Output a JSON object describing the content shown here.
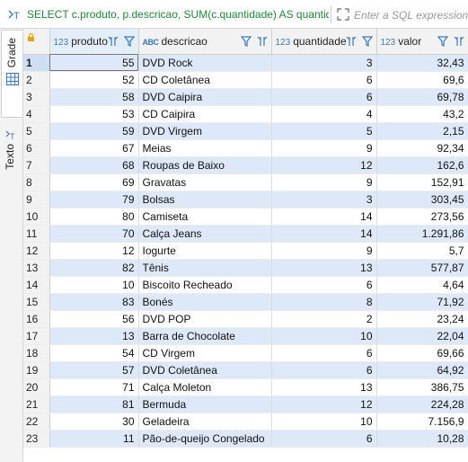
{
  "query": {
    "sql_text": "SELECT c.produto, p.descricao, SUM(c.quantidade) AS quantidade",
    "filter_placeholder": "Enter a SQL expression to filter results (use Ctrl+Space)"
  },
  "side_tabs": {
    "grid_label": "Grade",
    "text_label": "Texto"
  },
  "colors": {
    "sql_green": "#1e8a36",
    "type_blue": "#3a78c4",
    "row_alt": "#dde9f8"
  },
  "columns": [
    {
      "type_badge": "123",
      "name": "produto"
    },
    {
      "type_badge": "ABC",
      "name": "descricao"
    },
    {
      "type_badge": "123",
      "name": "quantidade"
    },
    {
      "type_badge": "123",
      "name": "valor"
    }
  ],
  "rows": [
    {
      "n": "1",
      "produto": "55",
      "descricao": "DVD Rock",
      "quantidade": "3",
      "valor": "32,43"
    },
    {
      "n": "2",
      "produto": "52",
      "descricao": "CD Coletânea",
      "quantidade": "6",
      "valor": "69,6"
    },
    {
      "n": "3",
      "produto": "58",
      "descricao": "DVD Caipira",
      "quantidade": "6",
      "valor": "69,78"
    },
    {
      "n": "4",
      "produto": "53",
      "descricao": "CD Caipira",
      "quantidade": "4",
      "valor": "43,2"
    },
    {
      "n": "5",
      "produto": "59",
      "descricao": "DVD Virgem",
      "quantidade": "5",
      "valor": "2,15"
    },
    {
      "n": "6",
      "produto": "67",
      "descricao": "Meias",
      "quantidade": "9",
      "valor": "92,34"
    },
    {
      "n": "7",
      "produto": "68",
      "descricao": "Roupas de Baixo",
      "quantidade": "12",
      "valor": "162,6"
    },
    {
      "n": "8",
      "produto": "69",
      "descricao": "Gravatas",
      "quantidade": "9",
      "valor": "152,91"
    },
    {
      "n": "9",
      "produto": "79",
      "descricao": "Bolsas",
      "quantidade": "3",
      "valor": "303,45"
    },
    {
      "n": "10",
      "produto": "80",
      "descricao": "Camiseta",
      "quantidade": "14",
      "valor": "273,56"
    },
    {
      "n": "11",
      "produto": "70",
      "descricao": "Calça Jeans",
      "quantidade": "14",
      "valor": "1.291,86"
    },
    {
      "n": "12",
      "produto": "12",
      "descricao": "Iogurte",
      "quantidade": "9",
      "valor": "5,7"
    },
    {
      "n": "13",
      "produto": "82",
      "descricao": "Tênis",
      "quantidade": "13",
      "valor": "577,87"
    },
    {
      "n": "14",
      "produto": "10",
      "descricao": "Biscoito Recheado",
      "quantidade": "6",
      "valor": "4,64"
    },
    {
      "n": "15",
      "produto": "83",
      "descricao": "Bonés",
      "quantidade": "8",
      "valor": "71,92"
    },
    {
      "n": "16",
      "produto": "56",
      "descricao": "DVD POP",
      "quantidade": "2",
      "valor": "23,24"
    },
    {
      "n": "17",
      "produto": "13",
      "descricao": "Barra de Chocolate",
      "quantidade": "10",
      "valor": "22,04"
    },
    {
      "n": "18",
      "produto": "54",
      "descricao": "CD Virgem",
      "quantidade": "6",
      "valor": "69,66"
    },
    {
      "n": "19",
      "produto": "57",
      "descricao": "DVD Coletânea",
      "quantidade": "6",
      "valor": "64,92"
    },
    {
      "n": "20",
      "produto": "71",
      "descricao": "Calça Moleton",
      "quantidade": "13",
      "valor": "386,75"
    },
    {
      "n": "21",
      "produto": "81",
      "descricao": "Bermuda",
      "quantidade": "12",
      "valor": "224,28"
    },
    {
      "n": "22",
      "produto": "30",
      "descricao": "Geladeira",
      "quantidade": "10",
      "valor": "7.156,9"
    },
    {
      "n": "23",
      "produto": "11",
      "descricao": "Pão-de-queijo Congelado",
      "quantidade": "6",
      "valor": "10,28"
    }
  ]
}
